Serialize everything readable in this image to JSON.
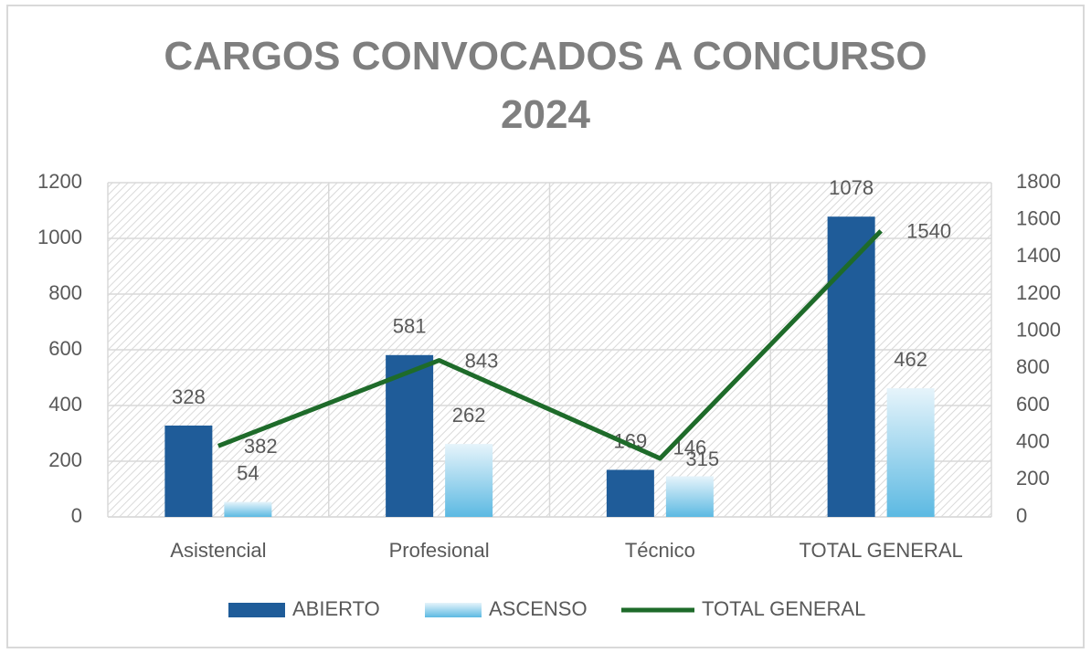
{
  "chart_data": {
    "type": "bar",
    "title": "CARGOS CONVOCADOS A CONCURSO 2024",
    "categories": [
      "Asistencial",
      "Profesional",
      "Técnico",
      "TOTAL GENERAL"
    ],
    "series": [
      {
        "name": "ABIERTO",
        "type": "bar",
        "color": "#1f5c99",
        "values": [
          328,
          581,
          169,
          1078
        ]
      },
      {
        "name": "ASCENSO",
        "type": "bar",
        "color": "#7ccbeb",
        "values": [
          54,
          262,
          146,
          462
        ]
      },
      {
        "name": "TOTAL GENERAL",
        "type": "line",
        "axis": "y2",
        "color": "#1e6b2a",
        "values": [
          382,
          843,
          315,
          1540
        ]
      }
    ],
    "ylim": [
      0,
      1200
    ],
    "yticks": [
      0,
      200,
      400,
      600,
      800,
      1000,
      1200
    ],
    "y2lim": [
      0,
      1800
    ],
    "y2ticks": [
      0,
      200,
      400,
      600,
      800,
      1000,
      1200,
      1400,
      1600,
      1800
    ],
    "grid": true,
    "legend": "bottom"
  }
}
